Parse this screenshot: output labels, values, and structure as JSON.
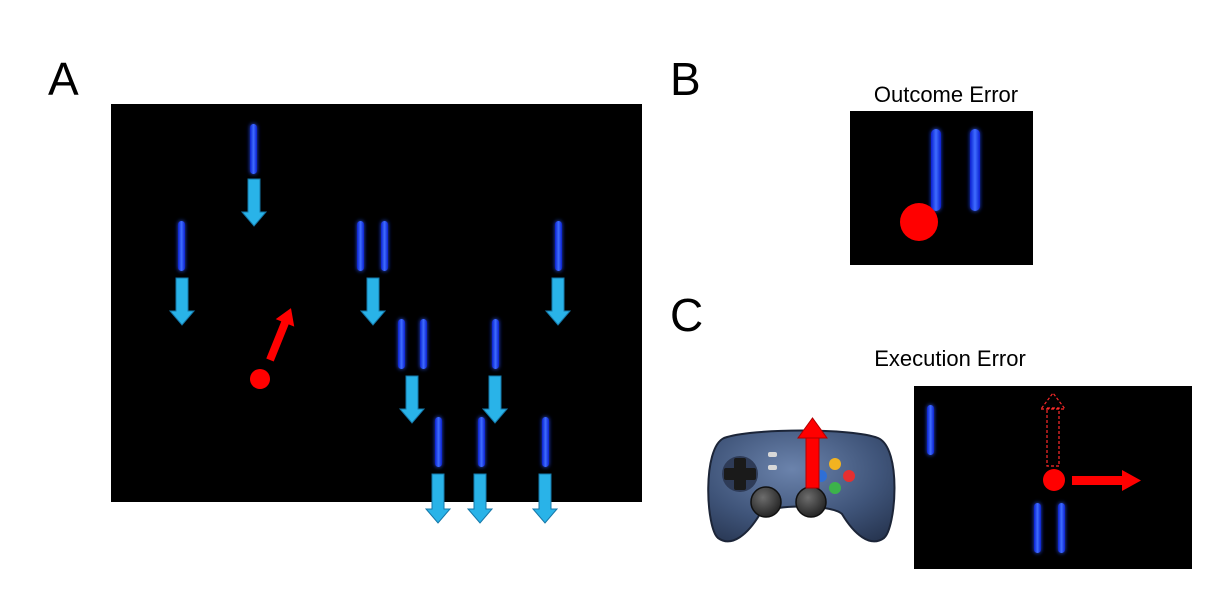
{
  "panels": {
    "a": {
      "label": "A"
    },
    "b": {
      "label": "B",
      "title": "Outcome Error"
    },
    "c": {
      "label": "C",
      "title": "Execution Error"
    }
  },
  "colors": {
    "screen_background": "#000000",
    "obstacle": "#1a3cf0",
    "obstacle_glow": "#8fa8ff",
    "motion_arrow": "#29b3e8",
    "motion_arrow_outline": "#1577a8",
    "player": "#ff0000",
    "gamepad_body": "#3f5479"
  },
  "icons": {
    "obstacle": "falling-bar",
    "player": "red-dot",
    "input": "gamepad-icon"
  }
}
